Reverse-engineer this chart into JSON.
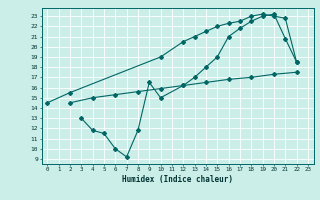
{
  "line1_x": [
    0,
    2,
    10,
    12,
    13,
    14,
    15,
    16,
    17,
    18,
    19,
    20,
    21,
    22
  ],
  "line1_y": [
    14.5,
    15.5,
    19.0,
    20.5,
    21.0,
    21.5,
    22.0,
    22.3,
    22.5,
    23.0,
    23.2,
    23.0,
    22.8,
    18.5
  ],
  "line2_x": [
    2,
    4,
    6,
    8,
    10,
    12,
    14,
    16,
    18,
    20,
    22
  ],
  "line2_y": [
    14.5,
    15.0,
    15.3,
    15.6,
    15.9,
    16.2,
    16.5,
    16.8,
    17.0,
    17.3,
    17.5
  ],
  "line3_x": [
    3,
    4,
    5,
    6,
    7,
    8,
    9,
    10,
    12,
    13,
    14,
    15,
    16,
    17,
    18,
    19,
    20,
    21,
    22
  ],
  "line3_y": [
    13.0,
    11.8,
    11.5,
    10.0,
    9.2,
    11.8,
    16.5,
    15.0,
    16.2,
    17.0,
    18.0,
    19.0,
    21.0,
    21.8,
    22.5,
    23.0,
    23.2,
    20.8,
    18.5
  ],
  "line_color": "#006666",
  "bg_color": "#cceee8",
  "grid_color": "#b0ddd8",
  "xlabel": "Humidex (Indice chaleur)",
  "xlim": [
    -0.5,
    23.5
  ],
  "ylim": [
    8.5,
    23.8
  ],
  "xticks": [
    0,
    1,
    2,
    3,
    4,
    5,
    6,
    7,
    8,
    9,
    10,
    11,
    12,
    13,
    14,
    15,
    16,
    17,
    18,
    19,
    20,
    21,
    22,
    23
  ],
  "yticks": [
    9,
    10,
    11,
    12,
    13,
    14,
    15,
    16,
    17,
    18,
    19,
    20,
    21,
    22,
    23
  ]
}
